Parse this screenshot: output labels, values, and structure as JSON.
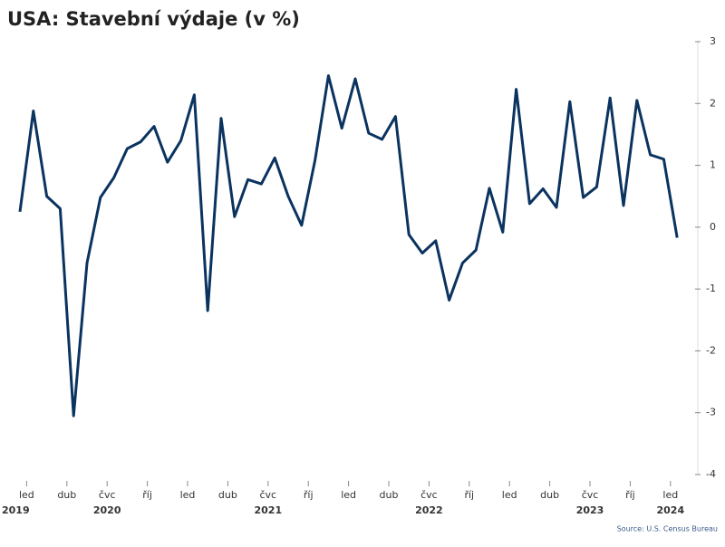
{
  "chart_data": {
    "type": "line",
    "title": "USA: Stavební výdaje (v %)",
    "source": "Source: U.S. Census Bureau",
    "categories": [
      "led",
      null,
      null,
      "dub",
      null,
      null,
      "čvc",
      null,
      null,
      "říj",
      null,
      null,
      "led",
      null,
      null,
      "dub",
      null,
      null,
      "čvc",
      null,
      null,
      "říj",
      null,
      null,
      "led",
      null,
      null,
      "dub",
      null,
      null,
      "čvc",
      null,
      null,
      "říj",
      null,
      null,
      "led",
      null,
      null,
      "dub",
      null,
      null,
      "čvc",
      null,
      null,
      "říj",
      null,
      null,
      "led",
      null
    ],
    "years": [
      "2019",
      null,
      null,
      null,
      null,
      null,
      "2020",
      null,
      null,
      null,
      null,
      null,
      null,
      null,
      null,
      null,
      null,
      null,
      "2021",
      null,
      null,
      null,
      null,
      null,
      null,
      null,
      null,
      null,
      null,
      null,
      "2022",
      null,
      null,
      null,
      null,
      null,
      null,
      null,
      null,
      null,
      null,
      null,
      "2023",
      null,
      null,
      null,
      null,
      null,
      "2024",
      null
    ],
    "series": [
      {
        "name": "Stavební výdaje",
        "color": "#0b3360",
        "values": [
          0.25,
          1.88,
          0.5,
          0.3,
          -3.05,
          -0.58,
          0.48,
          0.8,
          1.27,
          1.38,
          1.63,
          1.05,
          1.4,
          2.14,
          -1.35,
          1.76,
          0.17,
          0.77,
          0.7,
          1.12,
          0.5,
          0.03,
          1.08,
          2.45,
          1.6,
          2.4,
          1.52,
          1.42,
          1.79,
          -0.12,
          -0.42,
          -0.22,
          -1.18,
          -0.58,
          -0.37,
          0.63,
          -0.08,
          2.23,
          0.38,
          0.62,
          0.32,
          2.03,
          0.48,
          0.65,
          2.09,
          0.35,
          2.05,
          1.17,
          1.1,
          -0.17
        ]
      }
    ],
    "ylim": [
      -4,
      3
    ],
    "yticks": [
      3,
      2,
      1,
      0,
      -1,
      -2,
      -3,
      -4
    ],
    "y_axis_side": "right"
  }
}
